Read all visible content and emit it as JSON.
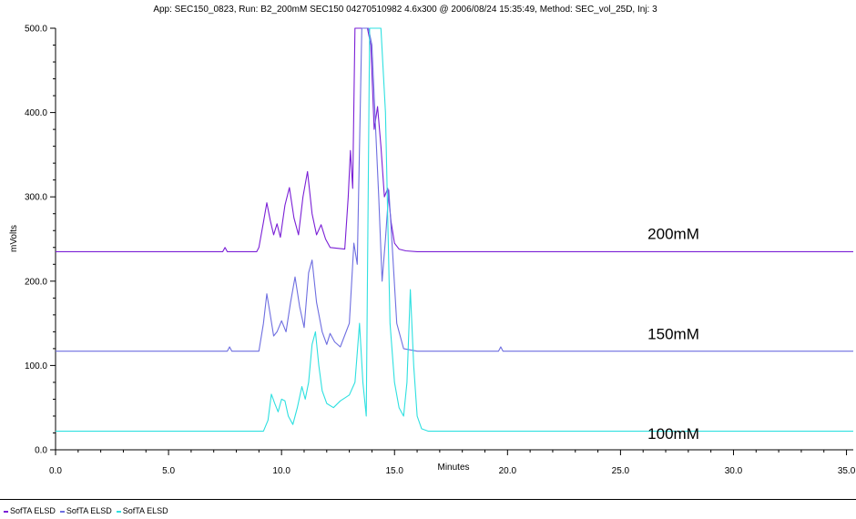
{
  "chart_data": {
    "type": "line",
    "title": "App: SEC150_0823, Run: B2_200mM SEC150 04270510982 4.6x300 @ 2006/08/24 15:35:49, Method: SEC_vol_25D, Inj: 3",
    "xlabel": "Minutes",
    "ylabel": "mVolts",
    "xlim": [
      0,
      35.3
    ],
    "ylim": [
      0,
      500
    ],
    "xticks": [
      "0.0",
      "5.0",
      "10.0",
      "15.0",
      "20.0",
      "25.0",
      "30.0",
      "35.0"
    ],
    "yticks": [
      "0.0",
      "100.0",
      "200.0",
      "300.0",
      "400.0",
      "500.0"
    ],
    "legend_position": "bottom-left",
    "annotations": [
      {
        "text": "200mM",
        "x": 26.2,
        "y": 250
      },
      {
        "text": "150mM",
        "x": 26.2,
        "y": 131
      },
      {
        "text": "100mM",
        "x": 26.2,
        "y": 13
      }
    ],
    "series": [
      {
        "name": "SofTA ELSD",
        "color": "#7a1fd6",
        "baseline": 235,
        "x": [
          0,
          7.4,
          7.5,
          7.6,
          8.9,
          9.0,
          9.2,
          9.35,
          9.5,
          9.65,
          9.8,
          9.95,
          10.15,
          10.35,
          10.55,
          10.75,
          10.95,
          11.15,
          11.35,
          11.55,
          11.75,
          11.95,
          12.15,
          12.8,
          12.95,
          13.05,
          13.15,
          13.25,
          13.35,
          13.5,
          13.65,
          13.8,
          13.95,
          14.1,
          14.25,
          14.4,
          14.55,
          14.7,
          14.85,
          15.0,
          15.2,
          15.5,
          16.0,
          20.0,
          21.0,
          30.0,
          31.0,
          35.3
        ],
        "y": [
          235,
          235,
          240,
          235,
          235,
          240,
          270,
          293,
          272,
          255,
          268,
          252,
          290,
          311,
          275,
          255,
          300,
          330,
          280,
          255,
          267,
          250,
          240,
          238,
          300,
          355,
          310,
          500,
          500,
          500,
          500,
          500,
          480,
          380,
          407,
          360,
          300,
          310,
          270,
          245,
          238,
          236,
          235,
          235,
          235,
          235,
          235,
          235
        ]
      },
      {
        "name": "SofTA ELSD",
        "color": "#6e6ee0",
        "baseline": 117,
        "x": [
          0,
          7.6,
          7.7,
          7.8,
          9.0,
          9.2,
          9.35,
          9.5,
          9.65,
          9.8,
          10.0,
          10.2,
          10.4,
          10.6,
          10.8,
          11.0,
          11.2,
          11.35,
          11.55,
          11.8,
          12.0,
          12.15,
          12.35,
          12.6,
          13.0,
          13.2,
          13.35,
          13.55,
          13.7,
          13.85,
          14.0,
          14.15,
          14.3,
          14.45,
          14.6,
          14.75,
          14.9,
          15.1,
          15.4,
          16.0,
          19.6,
          19.7,
          19.8,
          35.3
        ],
        "y": [
          117,
          117,
          122,
          117,
          117,
          150,
          185,
          160,
          135,
          140,
          153,
          140,
          175,
          205,
          170,
          145,
          210,
          225,
          175,
          140,
          125,
          138,
          128,
          122,
          150,
          245,
          220,
          500,
          500,
          500,
          480,
          390,
          300,
          200,
          250,
          308,
          240,
          150,
          120,
          117,
          117,
          122,
          117,
          117
        ]
      },
      {
        "name": "SofTA ELSD",
        "color": "#2ee0e0",
        "baseline": 22,
        "x": [
          0,
          9.2,
          9.4,
          9.55,
          9.7,
          9.85,
          10.0,
          10.15,
          10.3,
          10.5,
          10.7,
          10.9,
          11.05,
          11.2,
          11.35,
          11.5,
          11.65,
          11.8,
          12.0,
          12.3,
          12.6,
          13.0,
          13.25,
          13.45,
          13.6,
          13.75,
          13.9,
          14.05,
          14.2,
          14.4,
          14.6,
          14.8,
          15.0,
          15.2,
          15.4,
          15.55,
          15.7,
          15.85,
          16.0,
          16.2,
          16.5,
          35.3
        ],
        "y": [
          22,
          22,
          35,
          66,
          55,
          45,
          60,
          58,
          40,
          30,
          50,
          75,
          60,
          80,
          125,
          140,
          100,
          70,
          55,
          50,
          58,
          65,
          80,
          150,
          80,
          40,
          500,
          500,
          500,
          500,
          400,
          150,
          80,
          50,
          40,
          80,
          190,
          100,
          40,
          25,
          22,
          22
        ]
      }
    ]
  }
}
